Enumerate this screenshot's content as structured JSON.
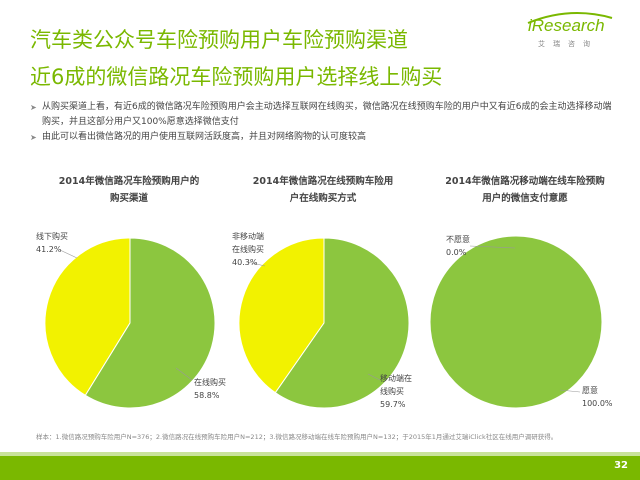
{
  "header": {
    "title_line1": "汽车类公众号车险预购用户车险预购渠道",
    "title_line2": "近6成的微信路况车险预购用户选择线上购买"
  },
  "logo": {
    "brand_i": "i",
    "brand_rest": "Research",
    "brand_sub": "艾瑞咨询"
  },
  "bullets": [
    "从购买渠道上看，有近6成的微信路况车险预购用户会主动选择互联网在线购买，微信路况在线预购车险的用户中又有近6成的会主动选择移动端购买，并且这部分用户又100%愿意选择微信支付",
    "由此可以看出微信路况的用户使用互联网活跃度高，并且对网络购物的认可度较高"
  ],
  "footnote": "样本：1.微信路况预购车险用户N=376；2.微信路况在线预购车险用户N=212；3.微信路况移动端在线车险预购用户N=132；于2015年1月通过艾瑞iClick社区在线用户调研获得。",
  "page_number": "32",
  "colors": {
    "green": "#8cc63f",
    "yellow": "#f2f200",
    "accent": "#7ab800"
  },
  "chart_data": [
    {
      "type": "pie",
      "title": "2014年微信路况车险预购用户的购买渠道",
      "title_lines": [
        "2014年微信路况车险预购用户的",
        "购买渠道"
      ],
      "slices": [
        {
          "label": "线下购买",
          "value": 41.2,
          "display": "41.2%",
          "color": "#f2f200"
        },
        {
          "label": "在线购买",
          "value": 58.8,
          "display": "58.8%",
          "color": "#8cc63f"
        }
      ]
    },
    {
      "type": "pie",
      "title": "2014年微信路况在线预购车险用户在线购买方式",
      "title_lines": [
        "2014年微信路况在线预购车险用",
        "户在线购买方式"
      ],
      "slices": [
        {
          "label": "非移动端在线购买",
          "label_lines": [
            "非移动端",
            "在线购买"
          ],
          "value": 40.3,
          "display": "40.3%",
          "color": "#f2f200"
        },
        {
          "label": "移动端在线购买",
          "label_lines": [
            "移动端在",
            "线购买"
          ],
          "value": 59.7,
          "display": "59.7%",
          "color": "#8cc63f"
        }
      ]
    },
    {
      "type": "pie",
      "title": "2014年微信路况移动端在线车险预购用户的微信支付意愿",
      "title_lines": [
        "2014年微信路况移动端在线车险预购",
        "用户的微信支付意愿"
      ],
      "slices": [
        {
          "label": "不愿意",
          "value": 0.0,
          "display": "0.0%",
          "color": "#f2f200"
        },
        {
          "label": "愿意",
          "value": 100.0,
          "display": "100.0%",
          "color": "#8cc63f"
        }
      ]
    }
  ]
}
